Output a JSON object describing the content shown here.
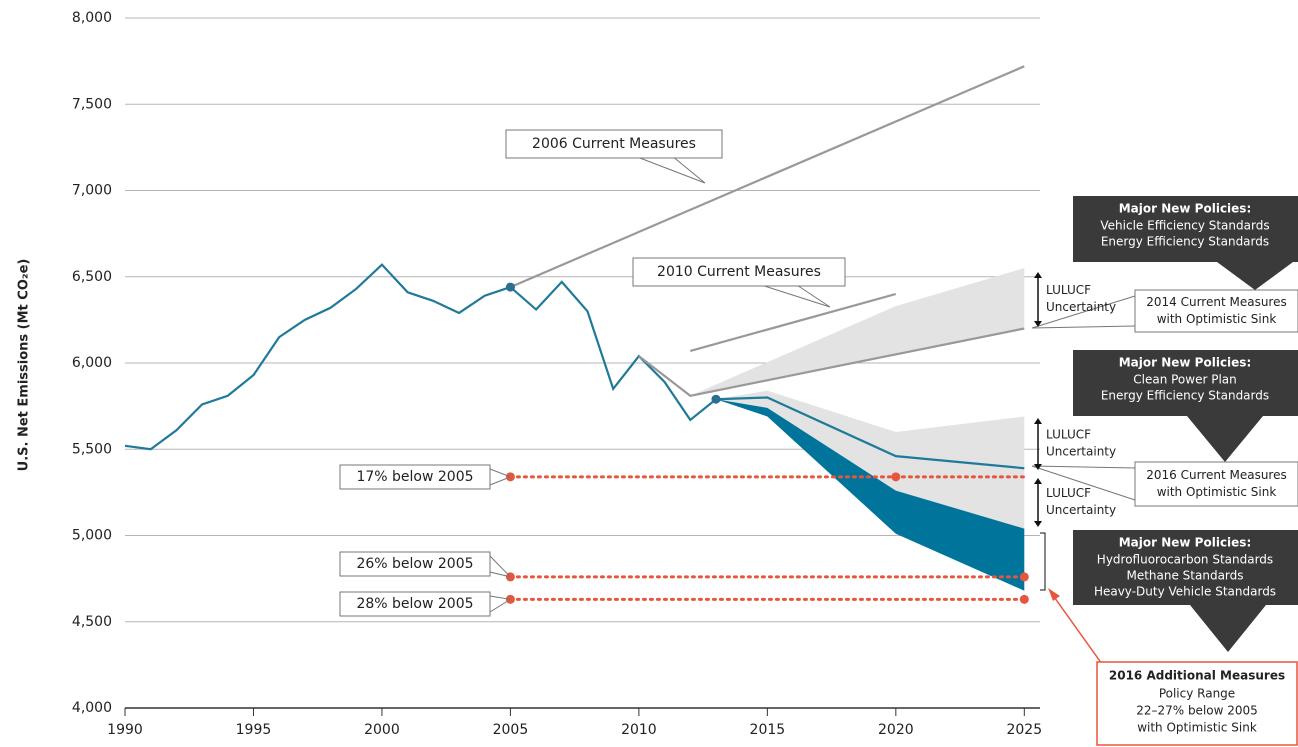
{
  "chart_data": {
    "type": "line",
    "y_label": "U.S. Net Emissions (Mt CO₂e)",
    "xlim": [
      1990,
      2026
    ],
    "xticks": [
      1990,
      1995,
      2000,
      2005,
      2010,
      2015,
      2020,
      2025
    ],
    "ylim": [
      4000,
      8000
    ],
    "yticks": [
      {
        "value": 4000,
        "label": "4,000"
      },
      {
        "value": 4500,
        "label": "4,500"
      },
      {
        "value": 5000,
        "label": "5,000"
      },
      {
        "value": 5500,
        "label": "5,500"
      },
      {
        "value": 6000,
        "label": "6,000"
      },
      {
        "value": 6500,
        "label": "6,500"
      },
      {
        "value": 7000,
        "label": "7,000"
      },
      {
        "value": 7500,
        "label": "7,500"
      },
      {
        "value": 8000,
        "label": "8,000"
      }
    ],
    "grid": true,
    "series": [
      {
        "color": "#1f7a99",
        "x": [
          1990,
          1991,
          1992,
          1993,
          1994,
          1995,
          1996,
          1997,
          1998,
          1999,
          2000,
          2001,
          2002,
          2003,
          2004,
          2005,
          2006,
          2007,
          2008,
          2009,
          2010,
          2011,
          2012,
          2013
        ],
        "values": [
          5520,
          5500,
          5610,
          5760,
          5810,
          5930,
          6150,
          6250,
          6320,
          6430,
          6570,
          6410,
          6360,
          6290,
          6390,
          6440,
          6310,
          6470,
          6300,
          5850,
          6040,
          5890,
          5670,
          5790
        ]
      },
      {
        "color": "#999999",
        "x": [
          2005,
          2025
        ],
        "values": [
          6440,
          7720
        ]
      },
      {
        "color": "#999999",
        "x": [
          2012,
          2020
        ],
        "values": [
          6070,
          6400
        ]
      },
      {
        "color": "#999999",
        "x": [
          2010,
          2012,
          2025
        ],
        "values": [
          6040,
          5810,
          6200
        ]
      },
      {
        "color": "#1f7a99",
        "x": [
          2013,
          2015,
          2020,
          2025
        ],
        "values": [
          5790,
          5800,
          5460,
          5390
        ]
      }
    ],
    "bands": [
      {
        "color": "#e3e3e4",
        "x": [
          2012,
          2020,
          2025
        ],
        "lower": [
          5810,
          6050,
          6200
        ],
        "upper": [
          5810,
          6330,
          6550
        ]
      },
      {
        "color": "#e3e3e4",
        "x": [
          2013,
          2015,
          2020,
          2025
        ],
        "lower": [
          5790,
          5740,
          5260,
          5040
        ],
        "upper": [
          5790,
          5840,
          5600,
          5690
        ]
      },
      {
        "color": "#00749b",
        "x": [
          2013,
          2015,
          2020,
          2025
        ],
        "lower": [
          5790,
          5690,
          5010,
          4680
        ],
        "upper": [
          5790,
          5740,
          5260,
          5040
        ]
      }
    ],
    "targets": [
      {
        "label": "17% below 2005",
        "value": 5340,
        "x": [
          2005,
          2025
        ],
        "dots": [
          2005,
          2020
        ]
      },
      {
        "label": "26% below 2005",
        "value": 4760,
        "x": [
          2005,
          2025
        ],
        "dots": [
          2005,
          2025
        ]
      },
      {
        "label": "28% below 2005",
        "value": 4630,
        "x": [
          2005,
          2025
        ],
        "dots": [
          2005,
          2025
        ]
      }
    ],
    "target_color": "#e8553d",
    "callouts": [
      {
        "lines": [
          "2006 Current Measures"
        ]
      },
      {
        "lines": [
          "2010 Current Measures"
        ]
      },
      {
        "lines": [
          "2014 Current Measures",
          "with Optimistic Sink"
        ]
      },
      {
        "lines": [
          "2016 Current Measures",
          "with Optimistic Sink"
        ]
      }
    ],
    "uncertainty_labels": [
      {
        "lines": [
          "LULUCF",
          "Uncertainty"
        ]
      },
      {
        "lines": [
          "LULUCF",
          "Uncertainty"
        ]
      },
      {
        "lines": [
          "LULUCF",
          "Uncertainty"
        ]
      }
    ],
    "policy_boxes": [
      {
        "title": "Major New Policies:",
        "lines": [
          "Vehicle Efficiency Standards",
          "Energy Efficiency Standards"
        ]
      },
      {
        "title": "Major New Policies:",
        "lines": [
          "Clean Power Plan",
          "Energy Efficiency Standards"
        ]
      },
      {
        "title": "Major New Policies:",
        "lines": [
          "Hydrofluorocarbon Standards",
          "Methane Standards",
          "Heavy-Duty Vehicle Standards"
        ]
      }
    ],
    "additional_box": {
      "title": "2016 Additional Measures",
      "lines": [
        "Policy Range",
        "22–27% below 2005",
        "with Optimistic Sink"
      ]
    }
  }
}
